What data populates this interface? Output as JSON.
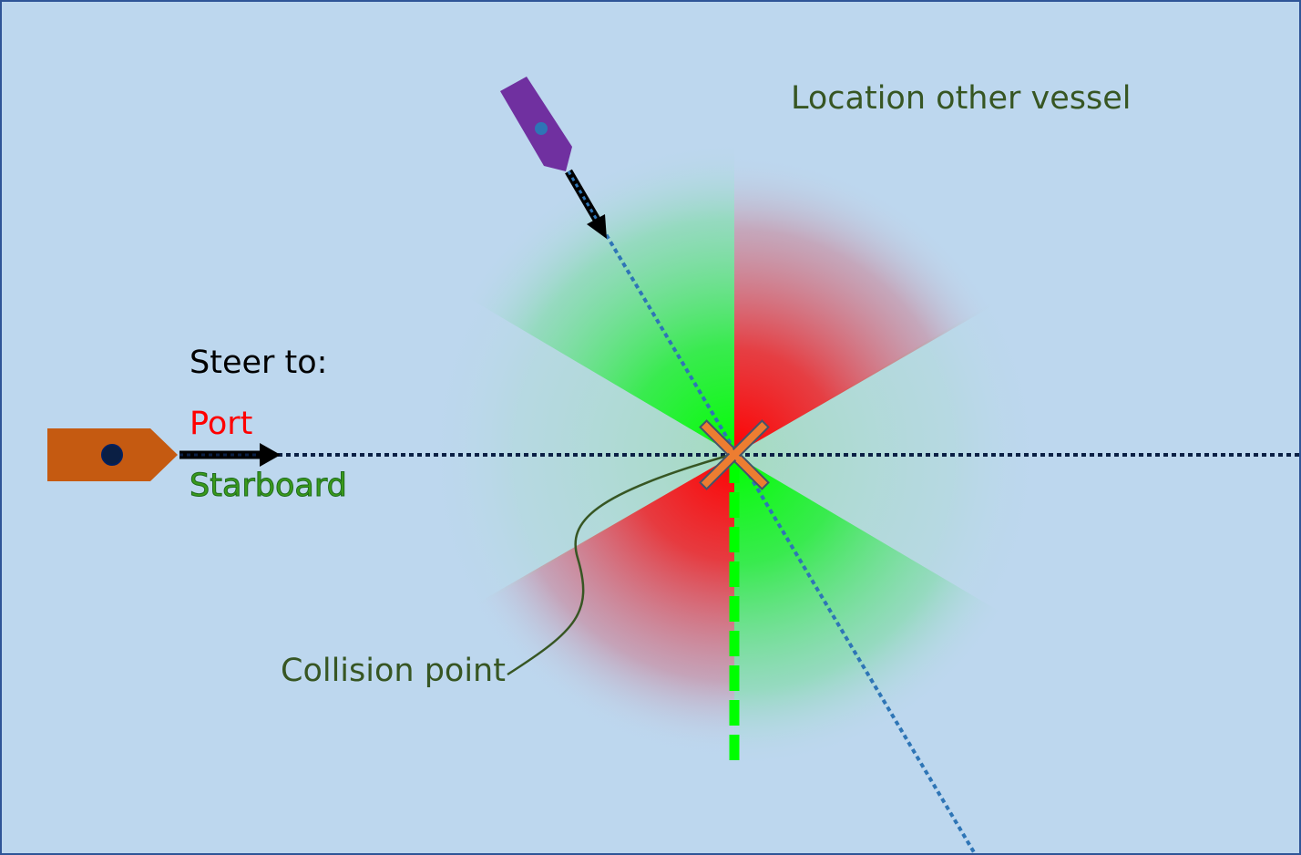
{
  "labels": {
    "steer_to": "Steer to:",
    "port": "Port",
    "starboard": "Starboard",
    "location_other_vessel": "Location other vessel",
    "collision_point": "Collision point"
  },
  "colors": {
    "background": "#bdd7ee",
    "border": "#2f5597",
    "port": "#ff0000",
    "starboard": "#00ff00",
    "starboard_text": "#3a9a1a",
    "label_dark_green": "#375623",
    "own_vessel": "#c55a11",
    "other_vessel": "#7030a0",
    "own_course_line": "#0a1f44",
    "other_course_line": "#2e75b6",
    "collision_marker": "#ed7d31"
  },
  "icons": {
    "own_vessel": "own-vessel-icon",
    "other_vessel": "other-vessel-icon",
    "collision_marker": "x-cross-icon"
  }
}
